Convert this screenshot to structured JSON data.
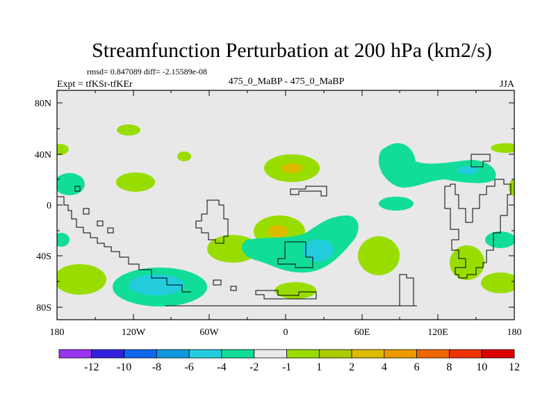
{
  "title": "Streamfunction Perturbation at 200 hPa (km2/s)",
  "stats": "rmsd= 0.847089 diff= -2.15589e-08",
  "expt": "Expt = tfKSr-tfKEr",
  "comparison": "475_0_MaBP - 475_0_MaBP",
  "season": "JJA",
  "lat_ticks": [
    "80N",
    "40N",
    "0",
    "40S",
    "80S"
  ],
  "lon_ticks": [
    "180",
    "120W",
    "60W",
    "0",
    "60E",
    "120E",
    "180"
  ],
  "colorbar_labels": [
    "-12",
    "-10",
    "-8",
    "-6",
    "-4",
    "-2",
    "-1",
    "1",
    "2",
    "4",
    "6",
    "8",
    "10",
    "12"
  ],
  "colorbar_colors": [
    "#9933ee",
    "#3322dd",
    "#1166ee",
    "#1199dd",
    "#22ccdd",
    "#11dd99",
    "#e8e8e8",
    "#99dd00",
    "#aacc00",
    "#ddbb00",
    "#ee9900",
    "#ee6600",
    "#ee3300",
    "#dd0000"
  ],
  "field_colors": {
    "background": "#e8e8e8",
    "pos_1_2": "#99dd00",
    "pos_2_4": "#ddbb00",
    "neg_1_2": "#11dd99",
    "neg_2_4": "#22ccdd",
    "coast": "#000000"
  }
}
